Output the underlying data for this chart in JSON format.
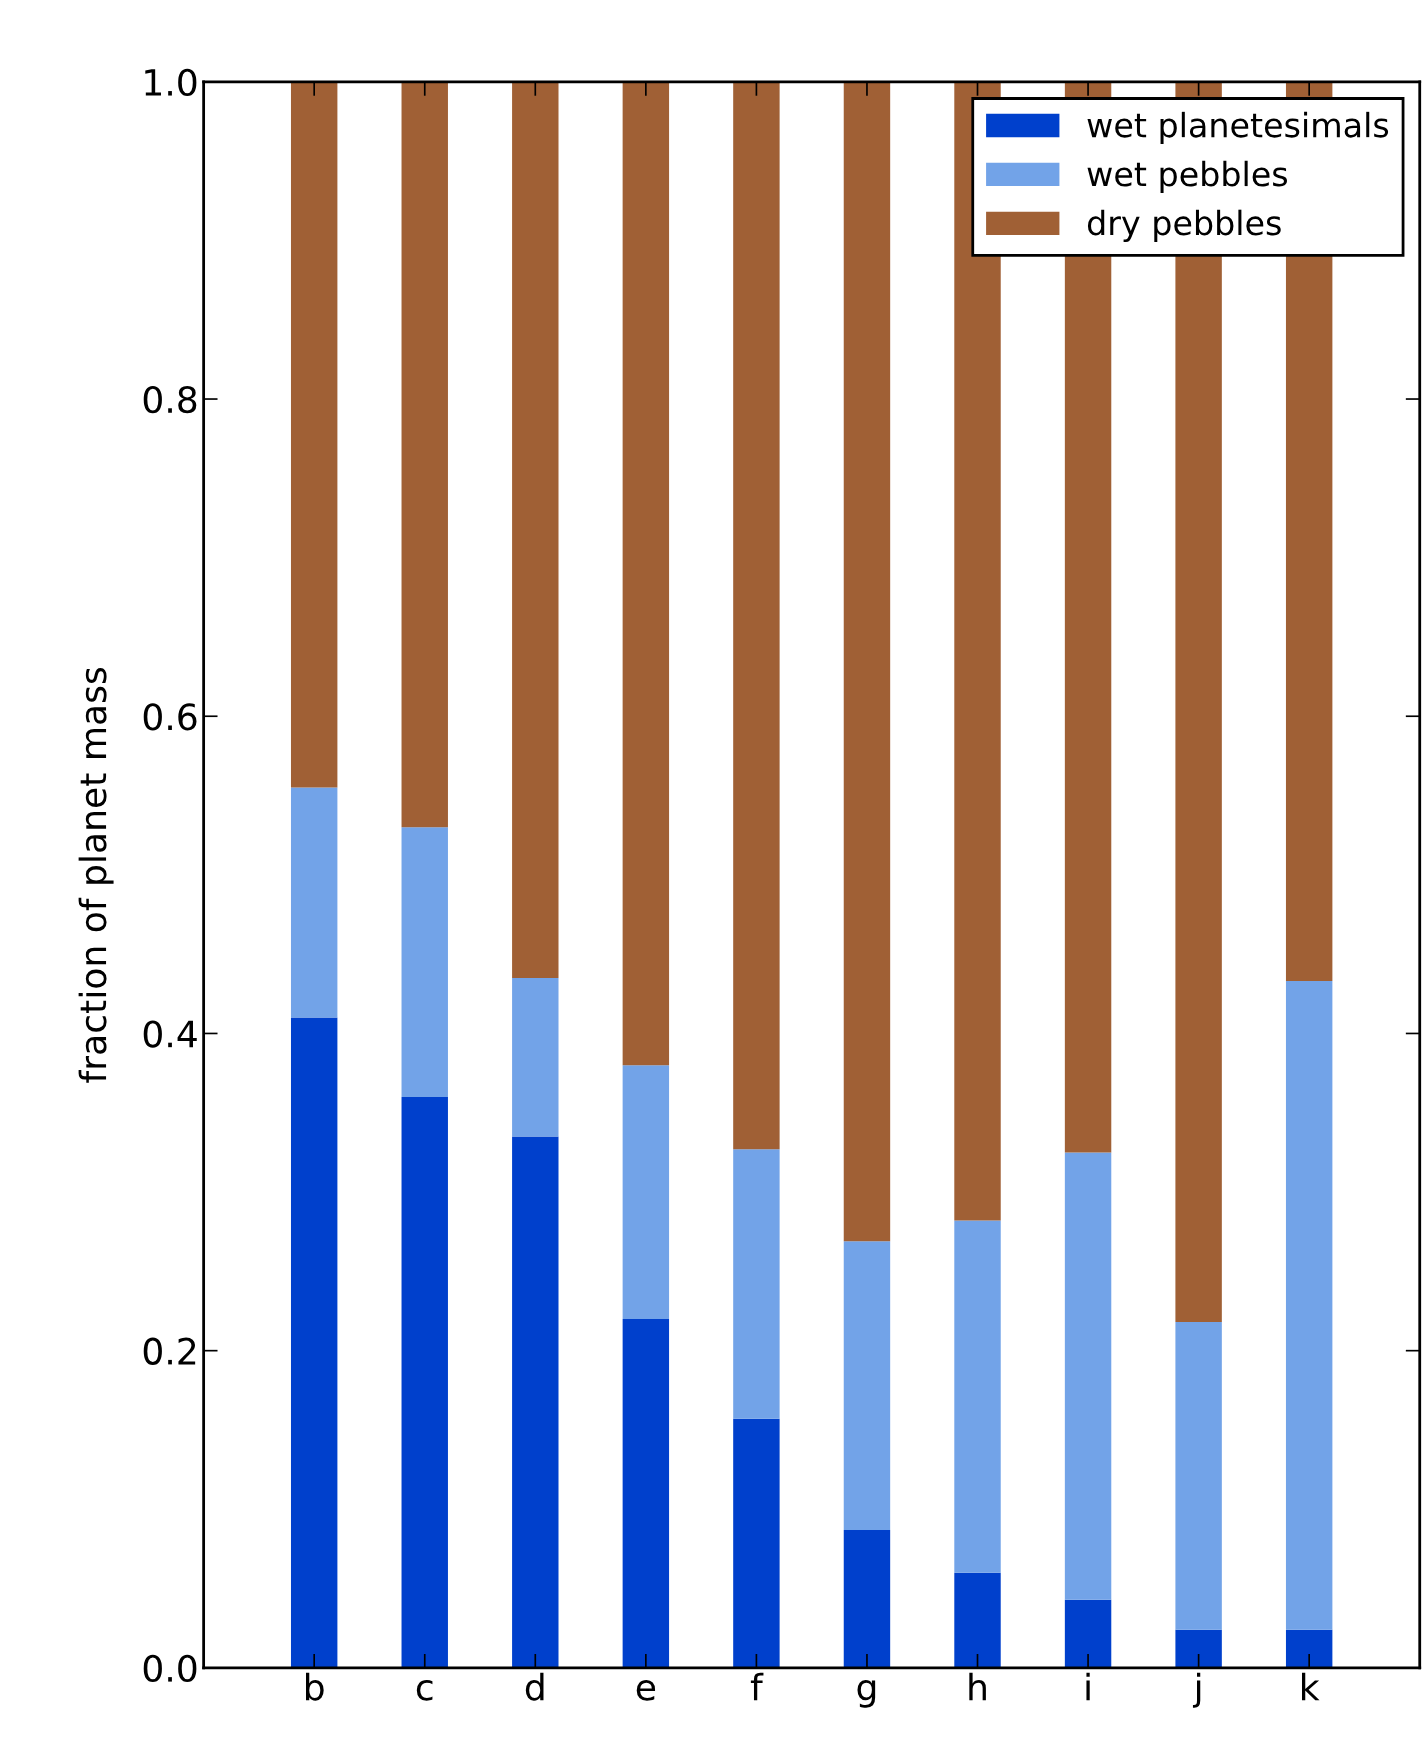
{
  "chart_data": {
    "type": "bar",
    "stacked": true,
    "ylabel": "fraction of planet mass",
    "categories": [
      "b",
      "c",
      "d",
      "e",
      "f",
      "g",
      "h",
      "i",
      "j",
      "k"
    ],
    "series": [
      {
        "name": "wet planetesimals",
        "color": "#0040cc",
        "values": [
          0.41,
          0.36,
          0.335,
          0.22,
          0.157,
          0.087,
          0.06,
          0.043,
          0.024,
          0.024
        ]
      },
      {
        "name": "wet pebbles",
        "color": "#72a3e8",
        "values": [
          0.145,
          0.17,
          0.1,
          0.16,
          0.17,
          0.182,
          0.222,
          0.282,
          0.194,
          0.409
        ]
      },
      {
        "name": "dry pebbles",
        "color": "#a06035",
        "values": [
          0.445,
          0.47,
          0.565,
          0.62,
          0.673,
          0.731,
          0.718,
          0.675,
          0.782,
          0.567
        ]
      }
    ],
    "ylim": [
      0,
      1.0
    ],
    "yticks": [
      {
        "value": 0,
        "label": "0.0"
      },
      {
        "value": 0.2,
        "label": "0.2"
      },
      {
        "value": 0.4,
        "label": "0.4"
      },
      {
        "value": 0.6,
        "label": "0.6"
      },
      {
        "value": 0.8,
        "label": "0.8"
      },
      {
        "value": 1.0,
        "label": "1.0"
      }
    ],
    "grid": false,
    "legend": "top right"
  }
}
